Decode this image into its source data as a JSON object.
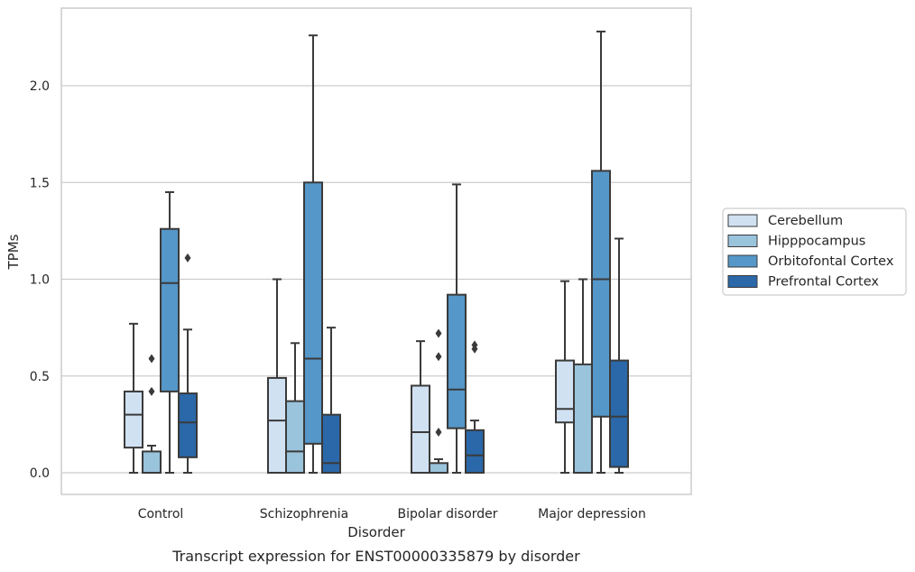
{
  "chart_data": {
    "type": "box",
    "title": "",
    "caption": "Transcript expression for ENST00000335879 by disorder",
    "xlabel": "Disorder",
    "ylabel": "TPMs",
    "ylim": [
      -0.1,
      2.4
    ],
    "yticks": [
      0.0,
      0.5,
      1.0,
      1.5,
      2.0
    ],
    "ytick_labels": [
      "0.0",
      "0.5",
      "1.0",
      "1.5",
      "2.0"
    ],
    "grid": "horizontal",
    "legend_position": "right",
    "categories": [
      "Control",
      "Schizophrenia",
      "Bipolar disorder",
      "Major depression"
    ],
    "series": [
      {
        "name": "Cerebellum",
        "color": "#d0e1f2",
        "boxes": [
          {
            "whislo": 0.0,
            "q1": 0.13,
            "med": 0.3,
            "q3": 0.42,
            "whishi": 0.77,
            "fliers": []
          },
          {
            "whislo": 0.0,
            "q1": 0.0,
            "med": 0.27,
            "q3": 0.49,
            "whishi": 1.0,
            "fliers": []
          },
          {
            "whislo": 0.0,
            "q1": 0.0,
            "med": 0.21,
            "q3": 0.45,
            "whishi": 0.68,
            "fliers": []
          },
          {
            "whislo": 0.0,
            "q1": 0.26,
            "med": 0.33,
            "q3": 0.58,
            "whishi": 0.99,
            "fliers": []
          }
        ]
      },
      {
        "name": "Hipppocampus",
        "color": "#9ac3dc",
        "boxes": [
          {
            "whislo": 0.0,
            "q1": 0.0,
            "med": 0.0,
            "q3": 0.11,
            "whishi": 0.14,
            "fliers": [
              0.42,
              0.59
            ]
          },
          {
            "whislo": 0.0,
            "q1": 0.0,
            "med": 0.11,
            "q3": 0.37,
            "whishi": 0.67,
            "fliers": []
          },
          {
            "whislo": 0.0,
            "q1": 0.0,
            "med": 0.0,
            "q3": 0.05,
            "whishi": 0.07,
            "fliers": [
              0.21,
              0.6,
              0.72
            ]
          },
          {
            "whislo": 0.0,
            "q1": 0.0,
            "med": 0.0,
            "q3": 0.56,
            "whishi": 1.0,
            "fliers": []
          }
        ]
      },
      {
        "name": "Orbitofontal Cortex",
        "color": "#5597c8",
        "boxes": [
          {
            "whislo": 0.0,
            "q1": 0.42,
            "med": 0.98,
            "q3": 1.26,
            "whishi": 1.45,
            "fliers": []
          },
          {
            "whislo": 0.0,
            "q1": 0.15,
            "med": 0.59,
            "q3": 1.5,
            "whishi": 2.26,
            "fliers": []
          },
          {
            "whislo": 0.0,
            "q1": 0.23,
            "med": 0.43,
            "q3": 0.92,
            "whishi": 1.49,
            "fliers": []
          },
          {
            "whislo": 0.0,
            "q1": 0.29,
            "med": 1.0,
            "q3": 1.56,
            "whishi": 2.28,
            "fliers": []
          }
        ]
      },
      {
        "name": "Prefrontal Cortex",
        "color": "#2a68a9",
        "boxes": [
          {
            "whislo": 0.0,
            "q1": 0.08,
            "med": 0.26,
            "q3": 0.41,
            "whishi": 0.74,
            "fliers": [
              1.11
            ]
          },
          {
            "whislo": 0.0,
            "q1": 0.0,
            "med": 0.05,
            "q3": 0.3,
            "whishi": 0.75,
            "fliers": []
          },
          {
            "whislo": 0.0,
            "q1": 0.0,
            "med": 0.09,
            "q3": 0.22,
            "whishi": 0.27,
            "fliers": [
              0.64,
              0.66
            ]
          },
          {
            "whislo": 0.0,
            "q1": 0.03,
            "med": 0.29,
            "q3": 0.58,
            "whishi": 1.21,
            "fliers": []
          }
        ]
      }
    ]
  }
}
